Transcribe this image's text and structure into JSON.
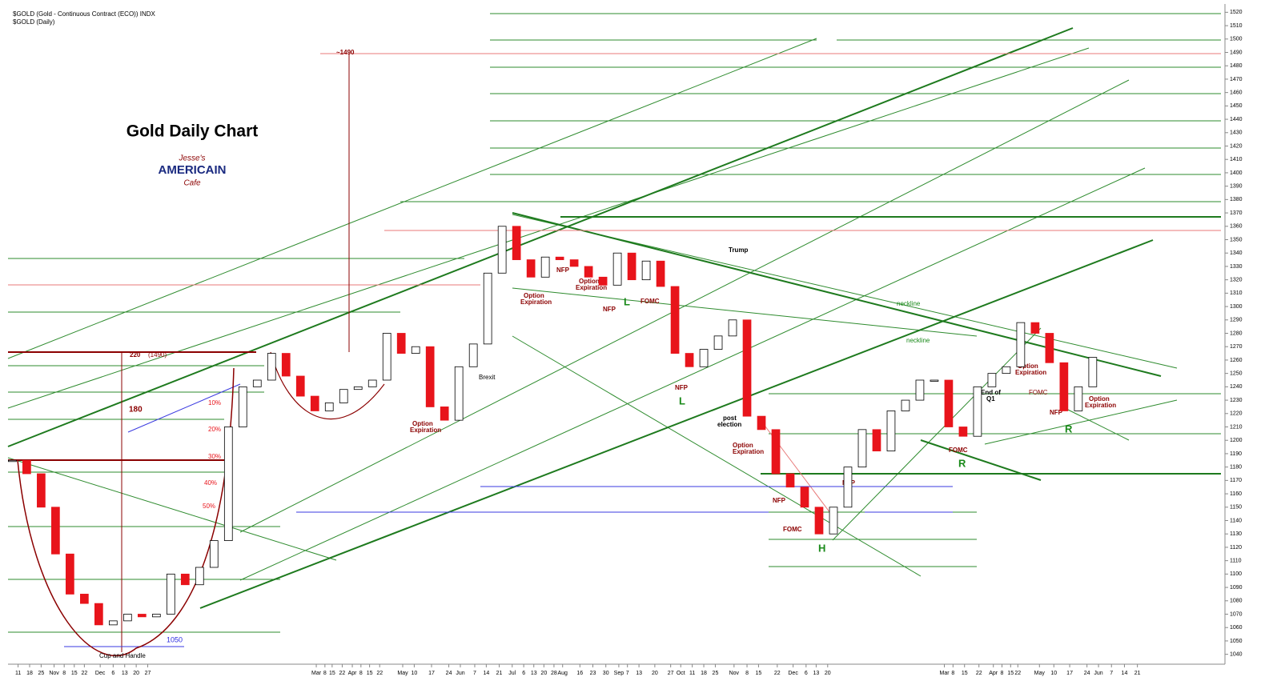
{
  "chart_data": {
    "type": "candlestick",
    "title": "Gold Daily Chart",
    "header": "$GOLD (Gold - Continuous Contract (ECO)) INDX",
    "subheader": "$GOLD (Daily)",
    "logo": [
      "Jesse's",
      "AMERICAIN",
      "Cafe"
    ],
    "values": [
      1185,
      1175,
      1150,
      1115,
      1085,
      1078,
      1062,
      1065,
      1070,
      1068,
      1070,
      1100,
      1092,
      1105,
      1125,
      1210,
      1240,
      1245,
      1265,
      1248,
      1233,
      1222,
      1228,
      1238,
      1240,
      1245,
      1280,
      1265,
      1270,
      1225,
      1215,
      1255,
      1272,
      1325,
      1360,
      1335,
      1322,
      1337,
      1335,
      1330,
      1322,
      1316,
      1340,
      1320,
      1334,
      1315,
      1265,
      1255,
      1268,
      1278,
      1290,
      1218,
      1208,
      1175,
      1165,
      1150,
      1130,
      1150,
      1180,
      1208,
      1192,
      1222,
      1230,
      1245,
      1245,
      1210,
      1203,
      1240,
      1250,
      1255,
      1288,
      1280,
      1258,
      1222,
      1240,
      1262
    ],
    "up_color": "#ffffff",
    "down_color": "#e8141b",
    "xlim": [
      -0.3,
      83.9
    ],
    "ylim": [
      1035,
      1525
    ],
    "yticks": [
      1040,
      1050,
      1060,
      1070,
      1080,
      1090,
      1100,
      1110,
      1120,
      1130,
      1140,
      1150,
      1160,
      1170,
      1180,
      1190,
      1200,
      1210,
      1220,
      1230,
      1240,
      1250,
      1260,
      1270,
      1280,
      1290,
      1300,
      1310,
      1320,
      1330,
      1340,
      1350,
      1360,
      1370,
      1380,
      1390,
      1400,
      1410,
      1420,
      1430,
      1440,
      1450,
      1460,
      1470,
      1480,
      1490,
      1500,
      1510,
      1520
    ],
    "xticks": [
      {
        "value": 0.4,
        "label": "11"
      },
      {
        "value": 1.2,
        "label": "18"
      },
      {
        "value": 2,
        "label": "25"
      },
      {
        "value": 2.9,
        "label": "Nov"
      },
      {
        "value": 3.6,
        "label": "8"
      },
      {
        "value": 4.3,
        "label": "15"
      },
      {
        "value": 5,
        "label": "22"
      },
      {
        "value": 6.1,
        "label": "Dec"
      },
      {
        "value": 7,
        "label": "6"
      },
      {
        "value": 7.8,
        "label": "13"
      },
      {
        "value": 8.6,
        "label": "20"
      },
      {
        "value": 9.4,
        "label": "27"
      },
      {
        "value": 21.1,
        "label": "Mar"
      },
      {
        "value": 21.7,
        "label": "8"
      },
      {
        "value": 22.2,
        "label": "15"
      },
      {
        "value": 22.9,
        "label": "22"
      },
      {
        "value": 23.6,
        "label": "Apr"
      },
      {
        "value": 24.2,
        "label": "8"
      },
      {
        "value": 24.8,
        "label": "15"
      },
      {
        "value": 25.5,
        "label": "22"
      },
      {
        "value": 27.1,
        "label": "May"
      },
      {
        "value": 27.9,
        "label": "10"
      },
      {
        "value": 29.1,
        "label": "17"
      },
      {
        "value": 30.3,
        "label": "24"
      },
      {
        "value": 31.1,
        "label": "Jun"
      },
      {
        "value": 32.1,
        "label": "7"
      },
      {
        "value": 32.9,
        "label": "14"
      },
      {
        "value": 33.8,
        "label": "21"
      },
      {
        "value": 34.7,
        "label": "Jul"
      },
      {
        "value": 35.5,
        "label": "6"
      },
      {
        "value": 36.2,
        "label": "13"
      },
      {
        "value": 36.9,
        "label": "20"
      },
      {
        "value": 37.6,
        "label": "28"
      },
      {
        "value": 38.2,
        "label": "Aug"
      },
      {
        "value": 39.4,
        "label": "16"
      },
      {
        "value": 40.3,
        "label": "23"
      },
      {
        "value": 41.2,
        "label": "30"
      },
      {
        "value": 42.1,
        "label": "Sep"
      },
      {
        "value": 42.7,
        "label": "7"
      },
      {
        "value": 43.5,
        "label": "13"
      },
      {
        "value": 44.6,
        "label": "20"
      },
      {
        "value": 45.7,
        "label": "27"
      },
      {
        "value": 46.4,
        "label": "Oct"
      },
      {
        "value": 47.2,
        "label": "11"
      },
      {
        "value": 48,
        "label": "18"
      },
      {
        "value": 48.8,
        "label": "25"
      },
      {
        "value": 50.1,
        "label": "Nov"
      },
      {
        "value": 51,
        "label": "8"
      },
      {
        "value": 51.8,
        "label": "15"
      },
      {
        "value": 53.1,
        "label": "22"
      },
      {
        "value": 54.2,
        "label": "Dec"
      },
      {
        "value": 55.1,
        "label": "6"
      },
      {
        "value": 55.8,
        "label": "13"
      },
      {
        "value": 56.6,
        "label": "20"
      },
      {
        "value": 64.7,
        "label": "Mar"
      },
      {
        "value": 65.3,
        "label": "8"
      },
      {
        "value": 66.1,
        "label": "15"
      },
      {
        "value": 67.1,
        "label": "22"
      },
      {
        "value": 68.1,
        "label": "Apr"
      },
      {
        "value": 68.7,
        "label": "8"
      },
      {
        "value": 69.3,
        "label": "15"
      },
      {
        "value": 69.8,
        "label": "22"
      },
      {
        "value": 71.3,
        "label": "May"
      },
      {
        "value": 72.3,
        "label": "10"
      },
      {
        "value": 73.4,
        "label": "17"
      },
      {
        "value": 74.6,
        "label": "24"
      },
      {
        "value": 75.4,
        "label": "Jun"
      },
      {
        "value": 76.3,
        "label": "7"
      },
      {
        "value": 77.2,
        "label": "14"
      },
      {
        "value": 78.1,
        "label": "21"
      }
    ],
    "annotations": [
      "~1490",
      "220",
      "(1490)",
      "180",
      "10%",
      "20%",
      "30%",
      "40%",
      "50%",
      "1050",
      "Cup and Handle",
      "Brexit",
      "Option",
      "Expiration",
      "NFP",
      "FOMC",
      "L",
      "Trump",
      "neckline",
      "post",
      "election",
      "H",
      "R",
      "End of",
      "Q1"
    ]
  }
}
